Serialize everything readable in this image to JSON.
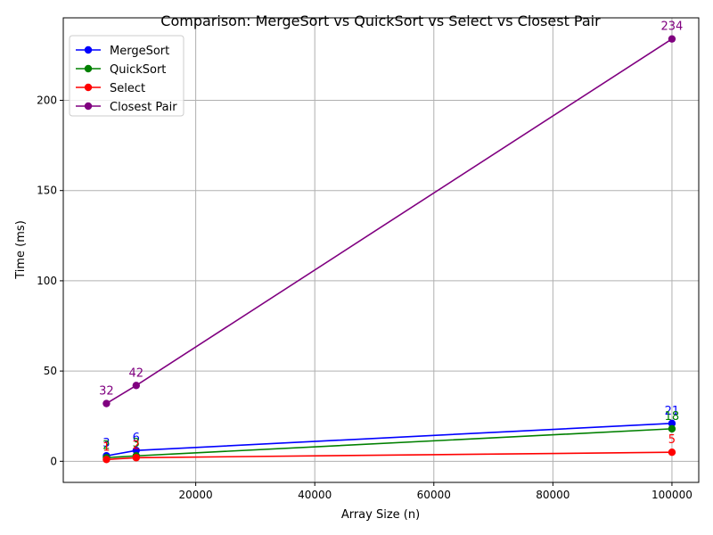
{
  "chart_data": {
    "type": "line",
    "title": "Comparison: MergeSort vs QuickSort vs Select vs Closest Pair",
    "xlabel": "Array Size (n)",
    "ylabel": "Time (ms)",
    "x": [
      5000,
      10000,
      100000
    ],
    "xlim": [
      -2250,
      104500
    ],
    "ylim": [
      -11.7,
      245.7
    ],
    "xticks": [
      20000,
      40000,
      60000,
      80000,
      100000
    ],
    "xtick_labels": [
      "20000",
      "40000",
      "60000",
      "80000",
      "100000"
    ],
    "yticks": [
      0,
      50,
      100,
      150,
      200
    ],
    "ytick_labels": [
      "0",
      "50",
      "100",
      "150",
      "200"
    ],
    "grid": true,
    "legend_position": "top-left",
    "series": [
      {
        "name": "MergeSort",
        "color": "#0000ff",
        "values": [
          3,
          6,
          21
        ],
        "labels": [
          "3",
          "6",
          "21"
        ]
      },
      {
        "name": "QuickSort",
        "color": "#008000",
        "values": [
          2,
          3,
          18
        ],
        "labels": [
          "2",
          "3",
          "18"
        ]
      },
      {
        "name": "Select",
        "color": "#ff0000",
        "values": [
          1,
          2,
          5
        ],
        "labels": [
          "1",
          "2",
          "5"
        ]
      },
      {
        "name": "Closest Pair",
        "color": "#800080",
        "values": [
          32,
          42,
          234
        ],
        "labels": [
          "32",
          "42",
          "234"
        ]
      }
    ]
  }
}
